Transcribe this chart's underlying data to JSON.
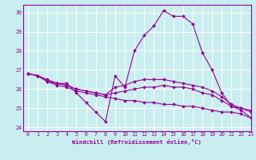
{
  "title": "",
  "xlabel": "Windchill (Refroidissement éolien,°C)",
  "ylabel": "",
  "bg_color": "#c8eef0",
  "line_color": "#990099",
  "grid_color": "#ffffff",
  "xlim": [
    -0.5,
    23
  ],
  "ylim": [
    23.8,
    30.4
  ],
  "yticks": [
    24,
    25,
    26,
    27,
    28,
    29,
    30
  ],
  "xticks": [
    0,
    1,
    2,
    3,
    4,
    5,
    6,
    7,
    8,
    9,
    10,
    11,
    12,
    13,
    14,
    15,
    16,
    17,
    18,
    19,
    20,
    21,
    22,
    23
  ],
  "series": [
    {
      "x": [
        0,
        1,
        2,
        3,
        4,
        5,
        6,
        7,
        8,
        9,
        10,
        11,
        12,
        13,
        14,
        15,
        16,
        17,
        18,
        19,
        20,
        21,
        22,
        23
      ],
      "y": [
        26.8,
        26.7,
        26.5,
        26.3,
        26.3,
        25.8,
        25.3,
        24.8,
        24.3,
        26.7,
        26.1,
        28.0,
        28.8,
        29.3,
        30.1,
        29.8,
        29.8,
        29.4,
        27.9,
        27.0,
        25.8,
        25.1,
        25.0,
        24.9
      ]
    },
    {
      "x": [
        0,
        1,
        2,
        3,
        4,
        5,
        6,
        7,
        8,
        9,
        10,
        11,
        12,
        13,
        14,
        15,
        16,
        17,
        18,
        19,
        20,
        21,
        22,
        23
      ],
      "y": [
        26.8,
        26.7,
        26.4,
        26.3,
        26.2,
        26.0,
        25.9,
        25.8,
        25.7,
        26.1,
        26.2,
        26.4,
        26.5,
        26.5,
        26.5,
        26.4,
        26.3,
        26.2,
        26.1,
        25.9,
        25.6,
        25.2,
        25.0,
        24.8
      ]
    },
    {
      "x": [
        0,
        1,
        2,
        3,
        4,
        5,
        6,
        7,
        8,
        9,
        10,
        11,
        12,
        13,
        14,
        15,
        16,
        17,
        18,
        19,
        20,
        21,
        22,
        23
      ],
      "y": [
        26.8,
        26.7,
        26.4,
        26.3,
        26.2,
        26.0,
        25.9,
        25.8,
        25.7,
        25.8,
        25.9,
        26.0,
        26.1,
        26.1,
        26.2,
        26.1,
        26.1,
        26.0,
        25.8,
        25.7,
        25.4,
        25.1,
        24.9,
        24.5
      ]
    },
    {
      "x": [
        0,
        1,
        2,
        3,
        4,
        5,
        6,
        7,
        8,
        9,
        10,
        11,
        12,
        13,
        14,
        15,
        16,
        17,
        18,
        19,
        20,
        21,
        22,
        23
      ],
      "y": [
        26.8,
        26.7,
        26.4,
        26.2,
        26.1,
        25.9,
        25.8,
        25.7,
        25.6,
        25.5,
        25.4,
        25.4,
        25.3,
        25.3,
        25.2,
        25.2,
        25.1,
        25.1,
        25.0,
        24.9,
        24.8,
        24.8,
        24.7,
        24.5
      ]
    }
  ]
}
